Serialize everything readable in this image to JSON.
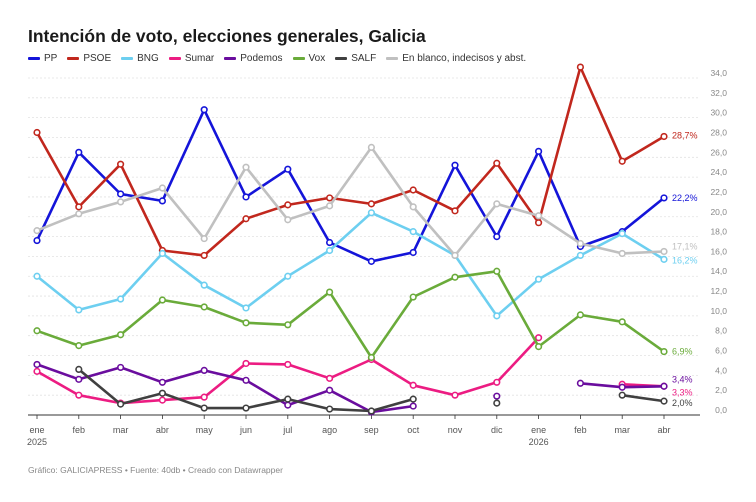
{
  "title": "Intención de voto, elecciones generales, Galicia",
  "footer": "Gráfico: GALICIAPRESS • Fuente: 40db • Creado con Datawrapper",
  "chart_data": {
    "type": "line",
    "title": "Intención de voto, elecciones generales, Galicia",
    "x": [
      "ene 2025",
      "feb",
      "mar",
      "abr",
      "may",
      "jun",
      "jul",
      "ago",
      "sep",
      "oct",
      "nov",
      "dic",
      "ene 2026",
      "feb",
      "mar",
      "abr"
    ],
    "x_ticks": [
      {
        "label": "ene",
        "sublabel": "2025"
      },
      {
        "label": "feb",
        "sublabel": ""
      },
      {
        "label": "mar",
        "sublabel": ""
      },
      {
        "label": "abr",
        "sublabel": ""
      },
      {
        "label": "may",
        "sublabel": ""
      },
      {
        "label": "jun",
        "sublabel": ""
      },
      {
        "label": "jul",
        "sublabel": ""
      },
      {
        "label": "ago",
        "sublabel": ""
      },
      {
        "label": "sep",
        "sublabel": ""
      },
      {
        "label": "oct",
        "sublabel": ""
      },
      {
        "label": "nov",
        "sublabel": ""
      },
      {
        "label": "dic",
        "sublabel": ""
      },
      {
        "label": "ene",
        "sublabel": "2026"
      },
      {
        "label": "feb",
        "sublabel": ""
      },
      {
        "label": "mar",
        "sublabel": ""
      },
      {
        "label": "abr",
        "sublabel": ""
      }
    ],
    "y_ticks": [
      "0,0",
      "2,0",
      "4,0",
      "6,0",
      "8,0",
      "10,0",
      "12,0",
      "14,0",
      "16,0",
      "18,0",
      "20,0",
      "22,0",
      "24,0",
      "26,0",
      "28,0",
      "30,0",
      "32,0",
      "34,0"
    ],
    "ylim": [
      0,
      34
    ],
    "grid": true,
    "y_axis_side": "right",
    "legend_position": "top",
    "series": [
      {
        "name": "PP",
        "color": "#1414d9",
        "values": [
          17.6,
          26.5,
          22.3,
          21.6,
          30.8,
          22.0,
          24.8,
          17.4,
          15.5,
          16.4,
          25.2,
          18.0,
          26.6,
          17.0,
          18.5,
          21.9
        ],
        "end_label": "22,2%"
      },
      {
        "name": "PSOE",
        "color": "#c1271d",
        "values": [
          28.5,
          21.0,
          25.3,
          16.6,
          16.1,
          19.8,
          21.2,
          21.9,
          21.3,
          22.7,
          20.6,
          25.4,
          19.4,
          35.1,
          25.6,
          28.1
        ],
        "end_label": "28,7%"
      },
      {
        "name": "BNG",
        "color": "#6dcff0",
        "values": [
          14.0,
          10.6,
          11.7,
          16.3,
          13.1,
          10.8,
          14.0,
          16.6,
          20.4,
          18.5,
          16.1,
          10.0,
          13.7,
          16.1,
          18.3,
          15.7
        ],
        "end_label": "16,2%"
      },
      {
        "name": "Sumar",
        "color": "#ec1c82",
        "values": [
          4.4,
          2.0,
          1.2,
          1.5,
          1.8,
          5.2,
          5.1,
          3.7,
          5.6,
          3.0,
          2.0,
          3.3,
          7.8,
          null,
          3.1,
          2.9
        ],
        "end_label": "3,3%"
      },
      {
        "name": "Podemos",
        "color": "#6a0d9e",
        "values": [
          5.1,
          3.6,
          4.8,
          3.3,
          4.5,
          3.5,
          1.0,
          2.5,
          0.3,
          0.9,
          null,
          1.9,
          null,
          3.2,
          2.8,
          2.9
        ],
        "end_label": "3,4%"
      },
      {
        "name": "Vox",
        "color": "#6aab3a",
        "values": [
          8.5,
          7.0,
          8.1,
          11.6,
          10.9,
          9.3,
          9.1,
          12.4,
          5.8,
          11.9,
          13.9,
          14.5,
          6.9,
          10.1,
          9.4,
          6.4
        ],
        "end_label": "6,9%"
      },
      {
        "name": "SALF",
        "color": "#404040",
        "values": [
          null,
          4.6,
          1.1,
          2.2,
          0.7,
          0.7,
          1.6,
          0.6,
          0.4,
          1.6,
          null,
          1.2,
          null,
          null,
          2.0,
          1.4
        ],
        "end_label": "2,0%"
      },
      {
        "name": "En blanco, indecisos y abst.",
        "color": "#c0c0c0",
        "values": [
          18.6,
          20.3,
          21.5,
          22.9,
          17.8,
          25.0,
          19.7,
          21.1,
          27.0,
          21.0,
          16.1,
          21.3,
          20.1,
          17.3,
          16.3,
          16.5
        ],
        "end_label": "17,1%"
      }
    ]
  }
}
